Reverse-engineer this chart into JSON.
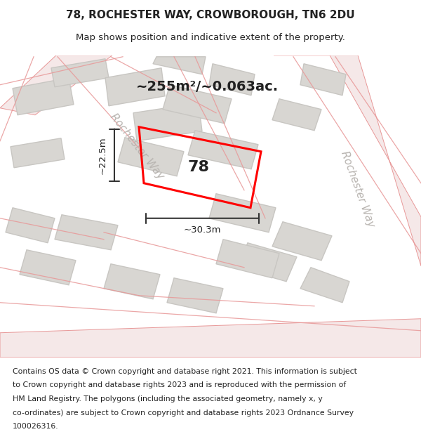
{
  "title_line1": "78, ROCHESTER WAY, CROWBOROUGH, TN6 2DU",
  "title_line2": "Map shows position and indicative extent of the property.",
  "area_label": "~255m²/~0.063ac.",
  "property_number": "78",
  "dim_width": "~30.3m",
  "dim_height": "~22.5m",
  "road_label": "Rochester Way",
  "map_bg_color": "#eeece8",
  "building_fill": "#d8d6d2",
  "building_edge": "#c8c6c2",
  "road_line_color": "#e89898",
  "road_fill_color": "#f5e8e8",
  "property_color": "#ff0000",
  "dim_line_color": "#333333",
  "text_color": "#222222",
  "title_fontsize": 11,
  "subtitle_fontsize": 9.5,
  "footer_fontsize": 7.8,
  "number_fontsize": 16,
  "area_fontsize": 14,
  "footer_lines": [
    "Contains OS data © Crown copyright and database right 2021. This information is subject",
    "to Crown copyright and database rights 2023 and is reproduced with the permission of",
    "HM Land Registry. The polygons (including the associated geometry, namely x, y",
    "co-ordinates) are subject to Crown copyright and database rights 2023 Ordnance Survey",
    "100026316."
  ]
}
